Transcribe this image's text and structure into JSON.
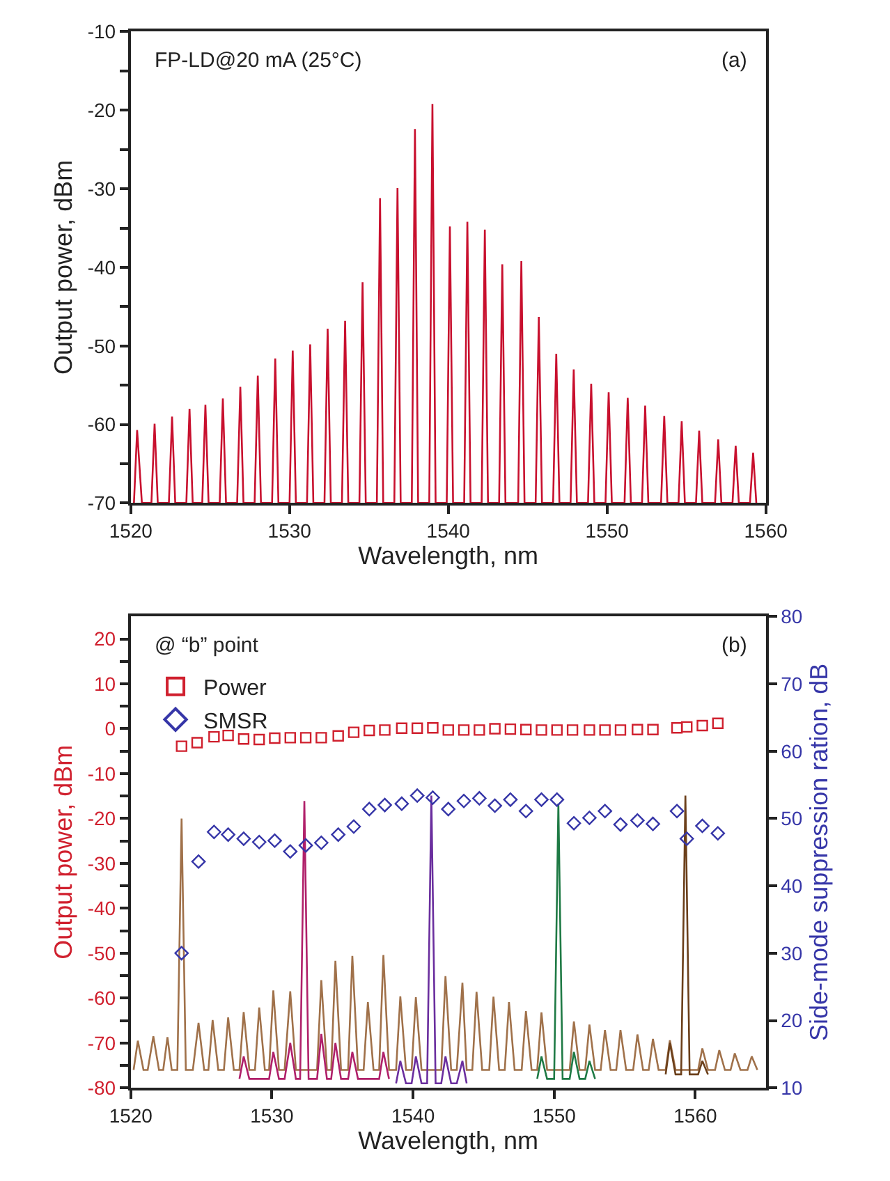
{
  "chart_data": [
    {
      "type": "line",
      "annotations": [
        "FP-LD@20 mA (25°C)",
        "(a)"
      ],
      "xlabel": "Wavelength, nm",
      "ylabel": "Output power, dBm",
      "xlim": [
        1520,
        1560
      ],
      "xticks": [
        1520,
        1530,
        1540,
        1550,
        1560
      ],
      "ylim": [
        -70,
        -10
      ],
      "yticks": [
        -70,
        {
          "value": -65,
          "label": null
        },
        -60,
        {
          "value": -55,
          "label": null
        },
        -50,
        {
          "value": -45,
          "label": null
        },
        -40,
        {
          "value": -35,
          "label": null
        },
        -30,
        {
          "value": -25,
          "label": null
        },
        -20,
        {
          "value": -15,
          "label": null
        },
        -10
      ],
      "legend": false,
      "marker": "none",
      "line_style": "solid",
      "series": [
        {
          "color": "#c8102e",
          "x": [
            1520.2,
            1520.4,
            1520.7,
            1521.3,
            1521.5,
            1521.7,
            1522.4,
            1522.6,
            1522.8,
            1523.5,
            1523.7,
            1523.9,
            1524.5,
            1524.7,
            1524.9,
            1525.6,
            1525.8,
            1526.0,
            1526.7,
            1526.9,
            1527.1,
            1527.8,
            1528.0,
            1528.2,
            1528.9,
            1529.1,
            1529.3,
            1530.0,
            1530.2,
            1530.4,
            1531.1,
            1531.3,
            1531.5,
            1532.2,
            1532.4,
            1532.6,
            1533.3,
            1533.5,
            1533.7,
            1534.4,
            1534.6,
            1534.8,
            1535.5,
            1535.7,
            1535.9,
            1536.6,
            1536.8,
            1537.0,
            1537.7,
            1537.9,
            1538.1,
            1538.8,
            1539.0,
            1539.2,
            1539.9,
            1540.1,
            1540.3,
            1541.0,
            1541.2,
            1541.4,
            1542.1,
            1542.3,
            1542.5,
            1543.2,
            1543.4,
            1543.6,
            1544.4,
            1544.6,
            1544.8,
            1545.5,
            1545.7,
            1545.9,
            1546.6,
            1546.8,
            1547.0,
            1547.7,
            1547.9,
            1548.1,
            1548.8,
            1549.0,
            1549.2,
            1549.9,
            1550.1,
            1550.3,
            1551.1,
            1551.3,
            1551.5,
            1552.2,
            1552.4,
            1552.6,
            1553.4,
            1553.6,
            1553.8,
            1554.5,
            1554.7,
            1554.9,
            1555.6,
            1555.8,
            1556.0,
            1556.8,
            1557.0,
            1557.2,
            1557.9,
            1558.1,
            1558.3,
            1559.0,
            1559.2,
            1559.4
          ],
          "values": [
            -70,
            -60.7,
            -70,
            -70,
            -59.9,
            -70,
            -70,
            -59.0,
            -70,
            -70,
            -58.0,
            -70,
            -70,
            -57.5,
            -70,
            -70,
            -56.7,
            -70,
            -70,
            -55.2,
            -70,
            -70,
            -53.8,
            -70,
            -70,
            -51.6,
            -70,
            -70,
            -50.6,
            -70,
            -70,
            -49.8,
            -70,
            -70,
            -47.8,
            -70,
            -70,
            -46.8,
            -70,
            -70,
            -41.9,
            -70,
            -70,
            -31.2,
            -70,
            -70,
            -29.9,
            -70,
            -70,
            -22.4,
            -70,
            -70,
            -19.2,
            -70,
            -70,
            -34.8,
            -70,
            -70,
            -34.2,
            -70,
            -70,
            -35.2,
            -70,
            -70,
            -39.6,
            -70,
            -70,
            -39.2,
            -70,
            -70,
            -46.3,
            -70,
            -70,
            -51.0,
            -70,
            -70,
            -53.0,
            -70,
            -70,
            -54.8,
            -70,
            -70,
            -55.9,
            -70,
            -70,
            -56.6,
            -70,
            -70,
            -57.6,
            -70,
            -70,
            -58.9,
            -70,
            -70,
            -59.6,
            -70,
            -70,
            -60.8,
            -70,
            -70,
            -61.9,
            -70,
            -70,
            -62.7,
            -70,
            -70,
            -63.6,
            -70
          ]
        }
      ]
    },
    {
      "type": "line",
      "annotations": [
        "@ “b” point",
        "(b)"
      ],
      "xlabel": "Wavelength, nm",
      "ylabel": "Output power, dBm",
      "y2label": "Side-mode suppression ration, dB",
      "xlim": [
        1520,
        1565
      ],
      "xticks": [
        1520,
        1530,
        1540,
        1550,
        1560
      ],
      "ylim": [
        -80,
        25
      ],
      "yticks": [
        -80,
        {
          "value": -75,
          "label": null
        },
        -70,
        {
          "value": -65,
          "label": null
        },
        -60,
        {
          "value": -55,
          "label": null
        },
        -50,
        {
          "value": -45,
          "label": null
        },
        -40,
        {
          "value": -35,
          "label": null
        },
        -30,
        {
          "value": -25,
          "label": null
        },
        -20,
        {
          "value": -15,
          "label": null
        },
        -10,
        {
          "value": -5,
          "label": null
        },
        0,
        {
          "value": 5,
          "label": null
        },
        10,
        {
          "value": 15,
          "label": null
        },
        20
      ],
      "y2lim": [
        10,
        80
      ],
      "y2ticks": [
        10,
        20,
        30,
        40,
        50,
        60,
        70,
        80
      ],
      "legend": "top left",
      "line_style": "solid",
      "series": [
        {
          "color": "#a0714a",
          "marker": "none",
          "x": [
            1520.2,
            1520.5,
            1520.9,
            1521.2,
            1521.6,
            1522.0,
            1522.3,
            1522.6,
            1522.9,
            1523.3,
            1523.6,
            1523.9,
            1524.4,
            1524.8,
            1525.2,
            1525.5,
            1525.8,
            1526.2,
            1526.6,
            1526.9,
            1527.3,
            1527.7,
            1528.0,
            1528.4,
            1528.8,
            1529.1,
            1529.5,
            1529.8,
            1530.1,
            1530.5,
            1530.9,
            1531.3,
            1531.7,
            1533.2,
            1533.5,
            1533.9,
            1534.2,
            1534.5,
            1534.9,
            1535.4,
            1535.7,
            1536.1,
            1536.5,
            1536.8,
            1537.2,
            1537.6,
            1537.9,
            1538.3,
            1538.8,
            1539.1,
            1539.5,
            1539.9,
            1540.2,
            1540.6,
            1542.0,
            1542.3,
            1542.7,
            1543.1,
            1543.5,
            1543.8,
            1544.2,
            1544.5,
            1544.9,
            1545.4,
            1545.7,
            1546.1,
            1546.5,
            1546.8,
            1547.2,
            1547.7,
            1548.0,
            1548.4,
            1548.8,
            1549.1,
            1549.5,
            1551.1,
            1551.4,
            1551.8,
            1552.2,
            1552.5,
            1552.9,
            1553.3,
            1553.6,
            1554.0,
            1554.4,
            1554.7,
            1555.1,
            1555.6,
            1555.9,
            1556.3,
            1556.7,
            1557.0,
            1557.4,
            1557.9,
            1558.2,
            1558.6,
            1560.2,
            1560.5,
            1560.9,
            1561.4,
            1561.7,
            1562.1,
            1562.5,
            1562.8,
            1563.2,
            1563.7,
            1564.0,
            1564.4
          ],
          "values": [
            -76,
            -69.5,
            -76,
            -76,
            -68.5,
            -76,
            -76,
            -68.7,
            -76,
            -76,
            -20,
            -76,
            -76,
            -65.5,
            -76,
            -76,
            -64.9,
            -76,
            -76,
            -64.3,
            -76,
            -76,
            -63.1,
            -76,
            -76,
            -62.1,
            -76,
            -76,
            -58.3,
            -76,
            -76,
            -58.5,
            -76,
            -76,
            -56.0,
            -76,
            -76,
            -51.7,
            -76,
            -76,
            -50.6,
            -76,
            -76,
            -60.9,
            -76,
            -76,
            -50.4,
            -76,
            -76,
            -59.6,
            -76,
            -76,
            -59.8,
            -76,
            -76,
            -55.1,
            -76,
            -76,
            -56.6,
            -76,
            -76,
            -58.6,
            -76,
            -76,
            -59.7,
            -76,
            -76,
            -60.9,
            -76,
            -76,
            -62.9,
            -76,
            -76,
            -63.2,
            -76,
            -76,
            -65.2,
            -76,
            -76,
            -65.9,
            -76,
            -76,
            -67.1,
            -76,
            -76,
            -67.1,
            -76,
            -76,
            -68.1,
            -76,
            -76,
            -69.1,
            -76,
            -76,
            -69.4,
            -76,
            -76,
            -71.2,
            -76,
            -76,
            -71.6,
            -76,
            -76,
            -72.3,
            -76,
            -76,
            -73.0,
            -76
          ]
        },
        {
          "color": "#b0206a",
          "marker": "none",
          "x": [
            1527.7,
            1528.0,
            1528.4,
            1529.8,
            1530.1,
            1530.5,
            1530.9,
            1531.3,
            1531.7,
            1532.0,
            1532.3,
            1532.6,
            1533.2,
            1533.5,
            1533.9,
            1534.2,
            1534.5,
            1534.9,
            1535.4,
            1535.7,
            1536.1,
            1537.6,
            1537.9,
            1538.3
          ],
          "values": [
            -78,
            -73,
            -78,
            -78,
            -72,
            -78,
            -78,
            -70,
            -78,
            -78,
            -16.1,
            -78,
            -78,
            -68,
            -78,
            -78,
            -70,
            -78,
            -78,
            -72,
            -78,
            -78,
            -72,
            -78
          ]
        },
        {
          "color": "#6a2e9e",
          "marker": "none",
          "x": [
            1538.8,
            1539.1,
            1539.5,
            1539.9,
            1540.2,
            1540.6,
            1541.0,
            1541.3,
            1541.6,
            1542.0,
            1542.3,
            1542.7,
            1543.1,
            1543.5,
            1543.8
          ],
          "values": [
            -79,
            -74,
            -79,
            -79,
            -73,
            -79,
            -79,
            -14.9,
            -79,
            -79,
            -73,
            -79,
            -79,
            -74,
            -79
          ]
        },
        {
          "color": "#1f7a45",
          "marker": "none",
          "x": [
            1548.8,
            1549.1,
            1549.5,
            1550.0,
            1550.3,
            1550.6,
            1551.1,
            1551.4,
            1551.8,
            1552.2,
            1552.5,
            1552.9
          ],
          "values": [
            -78,
            -73,
            -78,
            -78,
            -16.7,
            -78,
            -78,
            -72,
            -78,
            -78,
            -74,
            -78
          ]
        },
        {
          "color": "#6b3f1a",
          "marker": "none",
          "x": [
            1557.9,
            1558.2,
            1558.6,
            1559.0,
            1559.3,
            1559.6,
            1560.2,
            1560.5,
            1560.9
          ],
          "values": [
            -77,
            -70,
            -77,
            -77,
            -14.9,
            -77,
            -77,
            -74,
            -77
          ]
        },
        {
          "type": "scatter",
          "name": "Power",
          "color": "#d0202e",
          "marker": "square",
          "x": [
            1523.6,
            1524.7,
            1525.9,
            1526.9,
            1528.0,
            1529.1,
            1530.2,
            1531.3,
            1532.4,
            1533.5,
            1534.7,
            1535.8,
            1536.9,
            1538.0,
            1539.2,
            1540.3,
            1541.4,
            1542.5,
            1543.6,
            1544.7,
            1545.8,
            1546.9,
            1548.0,
            1549.1,
            1550.2,
            1551.3,
            1552.5,
            1553.6,
            1554.7,
            1555.9,
            1557.0,
            1558.7,
            1559.4,
            1560.5,
            1561.6
          ],
          "values": [
            -3.9,
            -3.1,
            -1.8,
            -1.5,
            -2.3,
            -2.4,
            -2.1,
            -2.0,
            -2.0,
            -2.0,
            -1.6,
            -0.8,
            -0.4,
            -0.3,
            0.1,
            0.1,
            0.2,
            -0.3,
            -0.3,
            -0.3,
            0.0,
            -0.1,
            -0.2,
            -0.3,
            -0.3,
            -0.3,
            -0.3,
            -0.3,
            -0.3,
            -0.2,
            -0.2,
            0.2,
            0.4,
            0.7,
            1.2
          ]
        },
        {
          "type": "scatter",
          "name": "SMSR",
          "color": "#3636a8",
          "marker": "diamond",
          "axis": "y2",
          "x": [
            1523.6,
            1524.8,
            1525.9,
            1526.9,
            1528.0,
            1529.1,
            1530.2,
            1531.3,
            1532.4,
            1533.5,
            1534.7,
            1535.8,
            1536.9,
            1538.0,
            1539.2,
            1540.3,
            1541.4,
            1542.5,
            1543.6,
            1544.7,
            1545.8,
            1546.9,
            1548.0,
            1549.1,
            1550.2,
            1551.4,
            1552.5,
            1553.6,
            1554.7,
            1555.9,
            1557.0,
            1558.7,
            1559.4,
            1560.5,
            1561.6
          ],
          "values": [
            30,
            43.6,
            48.0,
            47.6,
            47.0,
            46.5,
            46.7,
            45.1,
            46.0,
            46.4,
            47.6,
            48.8,
            51.4,
            52.0,
            52.2,
            53.4,
            53.1,
            51.4,
            52.6,
            53.0,
            51.9,
            52.8,
            51.1,
            52.8,
            52.8,
            49.3,
            50.1,
            51.1,
            49.1,
            49.7,
            49.2,
            51.1,
            47.0,
            48.9,
            47.8
          ]
        }
      ]
    }
  ]
}
